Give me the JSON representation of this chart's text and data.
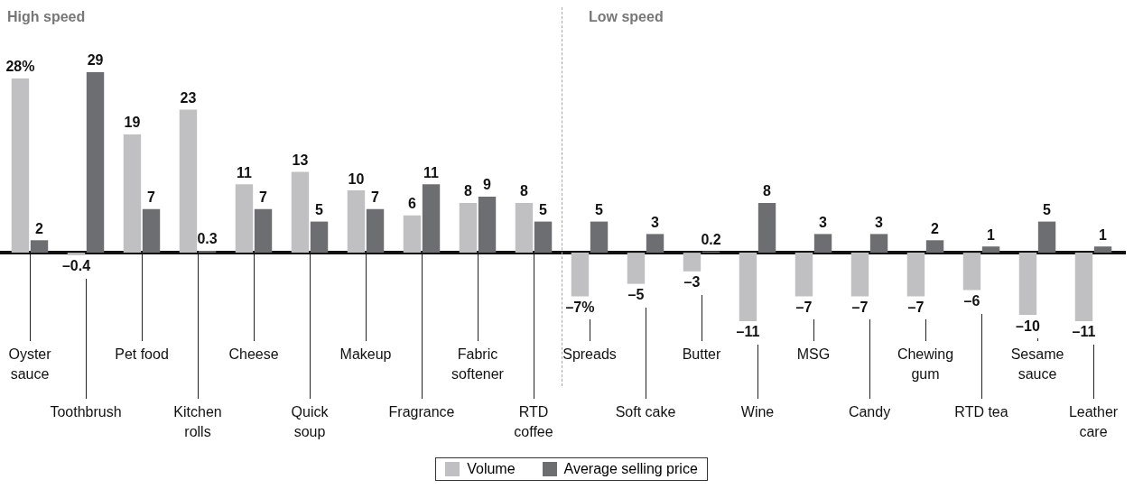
{
  "chart_data": {
    "type": "bar",
    "categories": [
      "Oyster sauce",
      "Toothbrush",
      "Pet food",
      "Kitchen rolls",
      "Cheese",
      "Quick soup",
      "Makeup",
      "Fragrance",
      "Fabric softener",
      "RTD coffee",
      "Spreads",
      "Soft cake",
      "Butter",
      "Wine",
      "MSG",
      "Candy",
      "Chewing gum",
      "RTD tea",
      "Sesame sauce",
      "Leather care"
    ],
    "series": [
      {
        "name": "Volume",
        "color": "#c0c0c2",
        "values": [
          28,
          -0.4,
          19,
          23,
          11,
          13,
          10,
          6,
          8,
          8,
          -7,
          -5,
          -3,
          -11,
          -7,
          -7,
          -7,
          -6,
          -10,
          -11
        ],
        "value_labels": [
          "28%",
          "–0.4",
          "19",
          "23",
          "11",
          "13",
          "10",
          "6",
          "8",
          "8",
          "–7%",
          "–5",
          "–3",
          "–11",
          "–7",
          "–7",
          "–7",
          "–6",
          "–10",
          "–11"
        ]
      },
      {
        "name": "Average selling price",
        "color": "#6d6e71",
        "values": [
          2,
          29,
          7,
          0.3,
          7,
          5,
          7,
          11,
          9,
          5,
          5,
          3,
          0.2,
          8,
          3,
          3,
          2,
          1,
          5,
          1
        ],
        "value_labels": [
          "2",
          "29",
          "7",
          "0.3",
          "7",
          "5",
          "7",
          "11",
          "9",
          "5",
          "5",
          "3",
          "0.2",
          "8",
          "3",
          "3",
          "2",
          "1",
          "5",
          "1"
        ]
      }
    ],
    "annotations": [
      "High speed",
      "Low speed"
    ],
    "ref_lines": [
      {
        "axis": "y",
        "value": 0,
        "color": "#111111"
      }
    ],
    "legend": "bottom"
  }
}
